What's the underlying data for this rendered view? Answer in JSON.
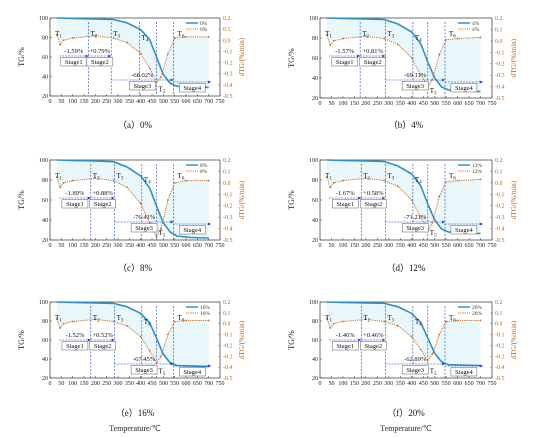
{
  "chart_data": [
    {
      "type": "line",
      "caption": "（a）0%",
      "legend": [
        "0%",
        "0%"
      ],
      "ylabel": "TG/%",
      "ylabel_right": "dTG/(%/min)",
      "xlim": [
        0,
        750
      ],
      "ylim": [
        20,
        100
      ],
      "ylim_right": [
        -0.5,
        0.2
      ],
      "tg": [
        [
          30,
          100
        ],
        [
          100,
          99.6
        ],
        [
          200,
          99
        ],
        [
          280,
          98.5
        ],
        [
          340,
          95
        ],
        [
          400,
          88
        ],
        [
          440,
          78
        ],
        [
          470,
          60
        ],
        [
          500,
          42
        ],
        [
          530,
          33
        ],
        [
          560,
          30
        ],
        [
          620,
          29.2
        ],
        [
          700,
          28.8
        ]
      ],
      "dtg": [
        [
          30,
          0.05
        ],
        [
          45,
          -0.04
        ],
        [
          60,
          0.0
        ],
        [
          100,
          0.02
        ],
        [
          200,
          0.04
        ],
        [
          280,
          0.02
        ],
        [
          340,
          -0.02
        ],
        [
          400,
          -0.12
        ],
        [
          440,
          -0.25
        ],
        [
          470,
          -0.38
        ],
        [
          490,
          -0.33
        ],
        [
          520,
          -0.12
        ],
        [
          550,
          0.02
        ],
        [
          600,
          0.03
        ],
        [
          700,
          0.03
        ]
      ],
      "stages": [
        {
          "label": "T1",
          "x": 40
        },
        {
          "label": "T2",
          "x": 170
        },
        {
          "label": "T3",
          "x": 270
        },
        {
          "label": "T4",
          "x": 395
        },
        {
          "label": "T5",
          "x": 470
        },
        {
          "label": "T6",
          "x": 545
        }
      ],
      "changes": [
        "-1.59%",
        "+0.79%",
        "-68.02%"
      ],
      "stage_names": [
        "Stage1",
        "Stage2",
        "Stage3",
        "Stage4"
      ]
    },
    {
      "type": "line",
      "caption": "（b）4%",
      "legend": [
        "4%",
        "4%"
      ],
      "ylabel": "TG/%",
      "ylabel_right": "dTG/(%/min)",
      "xlim": [
        0,
        750
      ],
      "ylim": [
        20,
        100
      ],
      "ylim_right": [
        -0.5,
        0.2
      ],
      "tg": [
        [
          30,
          100
        ],
        [
          100,
          99.6
        ],
        [
          200,
          99
        ],
        [
          280,
          98.5
        ],
        [
          340,
          94
        ],
        [
          400,
          86
        ],
        [
          440,
          74
        ],
        [
          470,
          56
        ],
        [
          500,
          40
        ],
        [
          530,
          31
        ],
        [
          560,
          28
        ],
        [
          620,
          27
        ],
        [
          700,
          26.5
        ]
      ],
      "dtg": [
        [
          30,
          0.05
        ],
        [
          45,
          -0.04
        ],
        [
          60,
          0.0
        ],
        [
          100,
          0.02
        ],
        [
          200,
          0.04
        ],
        [
          280,
          0.02
        ],
        [
          340,
          -0.03
        ],
        [
          400,
          -0.15
        ],
        [
          440,
          -0.3
        ],
        [
          470,
          -0.4
        ],
        [
          490,
          -0.34
        ],
        [
          520,
          -0.12
        ],
        [
          550,
          0.01
        ],
        [
          600,
          0.02
        ],
        [
          700,
          0.03
        ]
      ],
      "stages": [
        {
          "label": "T1",
          "x": 40
        },
        {
          "label": "T2",
          "x": 175
        },
        {
          "label": "T3",
          "x": 285
        },
        {
          "label": "T4",
          "x": 405
        },
        {
          "label": "T5",
          "x": 470
        },
        {
          "label": "T6",
          "x": 545
        }
      ],
      "changes": [
        "-1.57%",
        "+0.81%",
        "-69.11%"
      ],
      "stage_names": [
        "Stage1",
        "Stage2",
        "Stage3",
        "Stage4"
      ]
    },
    {
      "type": "line",
      "caption": "（c）8%",
      "legend": [
        "8%",
        "8%"
      ],
      "ylabel": "TG/%",
      "ylabel_right": "dTG/(%/min)",
      "xlim": [
        0,
        750
      ],
      "ylim": [
        20,
        100
      ],
      "ylim_right": [
        -0.5,
        0.2
      ],
      "tg": [
        [
          30,
          100
        ],
        [
          100,
          99.5
        ],
        [
          200,
          99
        ],
        [
          280,
          98.3
        ],
        [
          340,
          93
        ],
        [
          400,
          84
        ],
        [
          440,
          72
        ],
        [
          470,
          54
        ],
        [
          500,
          37
        ],
        [
          530,
          28
        ],
        [
          560,
          24
        ],
        [
          620,
          22.5
        ],
        [
          700,
          22
        ]
      ],
      "dtg": [
        [
          30,
          0.05
        ],
        [
          45,
          -0.04
        ],
        [
          60,
          0.0
        ],
        [
          100,
          0.02
        ],
        [
          200,
          0.04
        ],
        [
          280,
          0.02
        ],
        [
          340,
          -0.04
        ],
        [
          400,
          -0.18
        ],
        [
          440,
          -0.35
        ],
        [
          470,
          -0.47
        ],
        [
          490,
          -0.4
        ],
        [
          520,
          -0.15
        ],
        [
          550,
          0.0
        ],
        [
          600,
          0.02
        ],
        [
          700,
          0.02
        ]
      ],
      "stages": [
        {
          "label": "T1",
          "x": 40
        },
        {
          "label": "T2",
          "x": 180
        },
        {
          "label": "T3",
          "x": 285
        },
        {
          "label": "T4",
          "x": 405
        },
        {
          "label": "T5",
          "x": 470
        },
        {
          "label": "T6",
          "x": 545
        }
      ],
      "changes": [
        "-1.89%",
        "+0.88%",
        "-76.41%"
      ],
      "stage_names": [
        "Stage1",
        "Stage2",
        "Stage3",
        "Stage4"
      ]
    },
    {
      "type": "line",
      "caption": "（d）12%",
      "legend": [
        "12%",
        "12%"
      ],
      "ylabel": "TG/%",
      "ylabel_right": "dTG/(%/min)",
      "xlim": [
        0,
        750
      ],
      "ylim": [
        20,
        100
      ],
      "ylim_right": [
        -0.5,
        0.2
      ],
      "tg": [
        [
          30,
          100
        ],
        [
          100,
          99.6
        ],
        [
          200,
          99
        ],
        [
          280,
          98.5
        ],
        [
          340,
          94
        ],
        [
          400,
          86
        ],
        [
          440,
          74
        ],
        [
          470,
          56
        ],
        [
          500,
          40
        ],
        [
          530,
          31
        ],
        [
          560,
          28
        ],
        [
          620,
          27
        ],
        [
          700,
          26.5
        ]
      ],
      "dtg": [
        [
          30,
          0.05
        ],
        [
          45,
          -0.04
        ],
        [
          60,
          0.0
        ],
        [
          100,
          0.02
        ],
        [
          200,
          0.04
        ],
        [
          280,
          0.02
        ],
        [
          340,
          -0.03
        ],
        [
          400,
          -0.15
        ],
        [
          440,
          -0.3
        ],
        [
          470,
          -0.42
        ],
        [
          490,
          -0.35
        ],
        [
          520,
          -0.12
        ],
        [
          550,
          0.01
        ],
        [
          600,
          0.02
        ],
        [
          700,
          0.03
        ]
      ],
      "stages": [
        {
          "label": "T1",
          "x": 40
        },
        {
          "label": "T2",
          "x": 180
        },
        {
          "label": "T3",
          "x": 285
        },
        {
          "label": "T4",
          "x": 405
        },
        {
          "label": "T5",
          "x": 470
        },
        {
          "label": "T6",
          "x": 545
        }
      ],
      "changes": [
        "-1.67%",
        "+0.58%",
        "-71.21%"
      ],
      "stage_names": [
        "Stage1",
        "Stage2",
        "Stage3",
        "Stage4"
      ]
    },
    {
      "type": "line",
      "caption": "（e）16%",
      "legend": [
        "16%",
        "16%"
      ],
      "ylabel": "TG/%",
      "ylabel_right": "dTG/(%/min)",
      "xlim": [
        0,
        750
      ],
      "ylim": [
        20,
        100
      ],
      "ylim_right": [
        -0.5,
        0.2
      ],
      "tg": [
        [
          30,
          100
        ],
        [
          100,
          99.6
        ],
        [
          200,
          99
        ],
        [
          280,
          98.5
        ],
        [
          340,
          95
        ],
        [
          400,
          88
        ],
        [
          440,
          78
        ],
        [
          470,
          62
        ],
        [
          500,
          45
        ],
        [
          530,
          36
        ],
        [
          560,
          33
        ],
        [
          620,
          32.5
        ],
        [
          700,
          32
        ]
      ],
      "dtg": [
        [
          30,
          0.05
        ],
        [
          45,
          -0.04
        ],
        [
          60,
          0.0
        ],
        [
          100,
          0.02
        ],
        [
          200,
          0.04
        ],
        [
          280,
          0.02
        ],
        [
          340,
          -0.02
        ],
        [
          400,
          -0.12
        ],
        [
          440,
          -0.25
        ],
        [
          470,
          -0.36
        ],
        [
          490,
          -0.3
        ],
        [
          520,
          -0.1
        ],
        [
          550,
          0.02
        ],
        [
          600,
          0.03
        ],
        [
          700,
          0.03
        ]
      ],
      "stages": [
        {
          "label": "T1",
          "x": 40
        },
        {
          "label": "T2",
          "x": 180
        },
        {
          "label": "T3",
          "x": 285
        },
        {
          "label": "T4",
          "x": 405
        },
        {
          "label": "T5",
          "x": 470
        },
        {
          "label": "T6",
          "x": 545
        }
      ],
      "changes": [
        "-1.52%",
        "+0.52%",
        "-67.45%"
      ],
      "stage_names": [
        "Stage1",
        "Stage2",
        "Stage3",
        "Stage4"
      ]
    },
    {
      "type": "line",
      "caption": "（f）20%",
      "legend": [
        "20%",
        "20%"
      ],
      "ylabel": "TG/%",
      "ylabel_right": "dTG/(%/min)",
      "xlim": [
        0,
        750
      ],
      "ylim": [
        20,
        100
      ],
      "ylim_right": [
        -0.5,
        0.2
      ],
      "tg": [
        [
          30,
          100
        ],
        [
          100,
          99.6
        ],
        [
          200,
          99.1
        ],
        [
          280,
          98.6
        ],
        [
          340,
          95
        ],
        [
          400,
          88
        ],
        [
          440,
          78
        ],
        [
          470,
          62
        ],
        [
          500,
          46
        ],
        [
          530,
          37
        ],
        [
          560,
          34
        ],
        [
          620,
          33.5
        ],
        [
          700,
          33
        ]
      ],
      "dtg": [
        [
          30,
          0.05
        ],
        [
          45,
          -0.04
        ],
        [
          60,
          0.0
        ],
        [
          100,
          0.02
        ],
        [
          200,
          0.04
        ],
        [
          280,
          0.02
        ],
        [
          340,
          -0.02
        ],
        [
          400,
          -0.12
        ],
        [
          440,
          -0.24
        ],
        [
          470,
          -0.34
        ],
        [
          490,
          -0.28
        ],
        [
          520,
          -0.1
        ],
        [
          550,
          0.02
        ],
        [
          600,
          0.03
        ],
        [
          700,
          0.03
        ]
      ],
      "stages": [
        {
          "label": "T1",
          "x": 40
        },
        {
          "label": "T2",
          "x": 180
        },
        {
          "label": "T3",
          "x": 285
        },
        {
          "label": "T4",
          "x": 405
        },
        {
          "label": "T5",
          "x": 470
        },
        {
          "label": "T6",
          "x": 545
        }
      ],
      "changes": [
        "-1.46%",
        "+0.46%",
        "-62.89%"
      ],
      "stage_names": [
        "Stage1",
        "Stage2",
        "Stage3",
        "Stage4"
      ]
    }
  ],
  "x_ticks": [
    0,
    50,
    100,
    150,
    200,
    250,
    300,
    350,
    400,
    450,
    500,
    550,
    600,
    650,
    700,
    750
  ],
  "y_ticks": [
    20,
    40,
    60,
    80,
    100
  ],
  "y_ticks_right": [
    "0.2",
    "0.1",
    "0.0",
    "-0.1",
    "-0.2",
    "-0.3",
    "-0.4",
    "-0.5"
  ],
  "xlabel": "Temperature/℃",
  "colors": {
    "tg": "#2e8fc8",
    "dtg": "#c8742a",
    "stage": "#1a3cc0",
    "shade": "#cfeef6"
  }
}
